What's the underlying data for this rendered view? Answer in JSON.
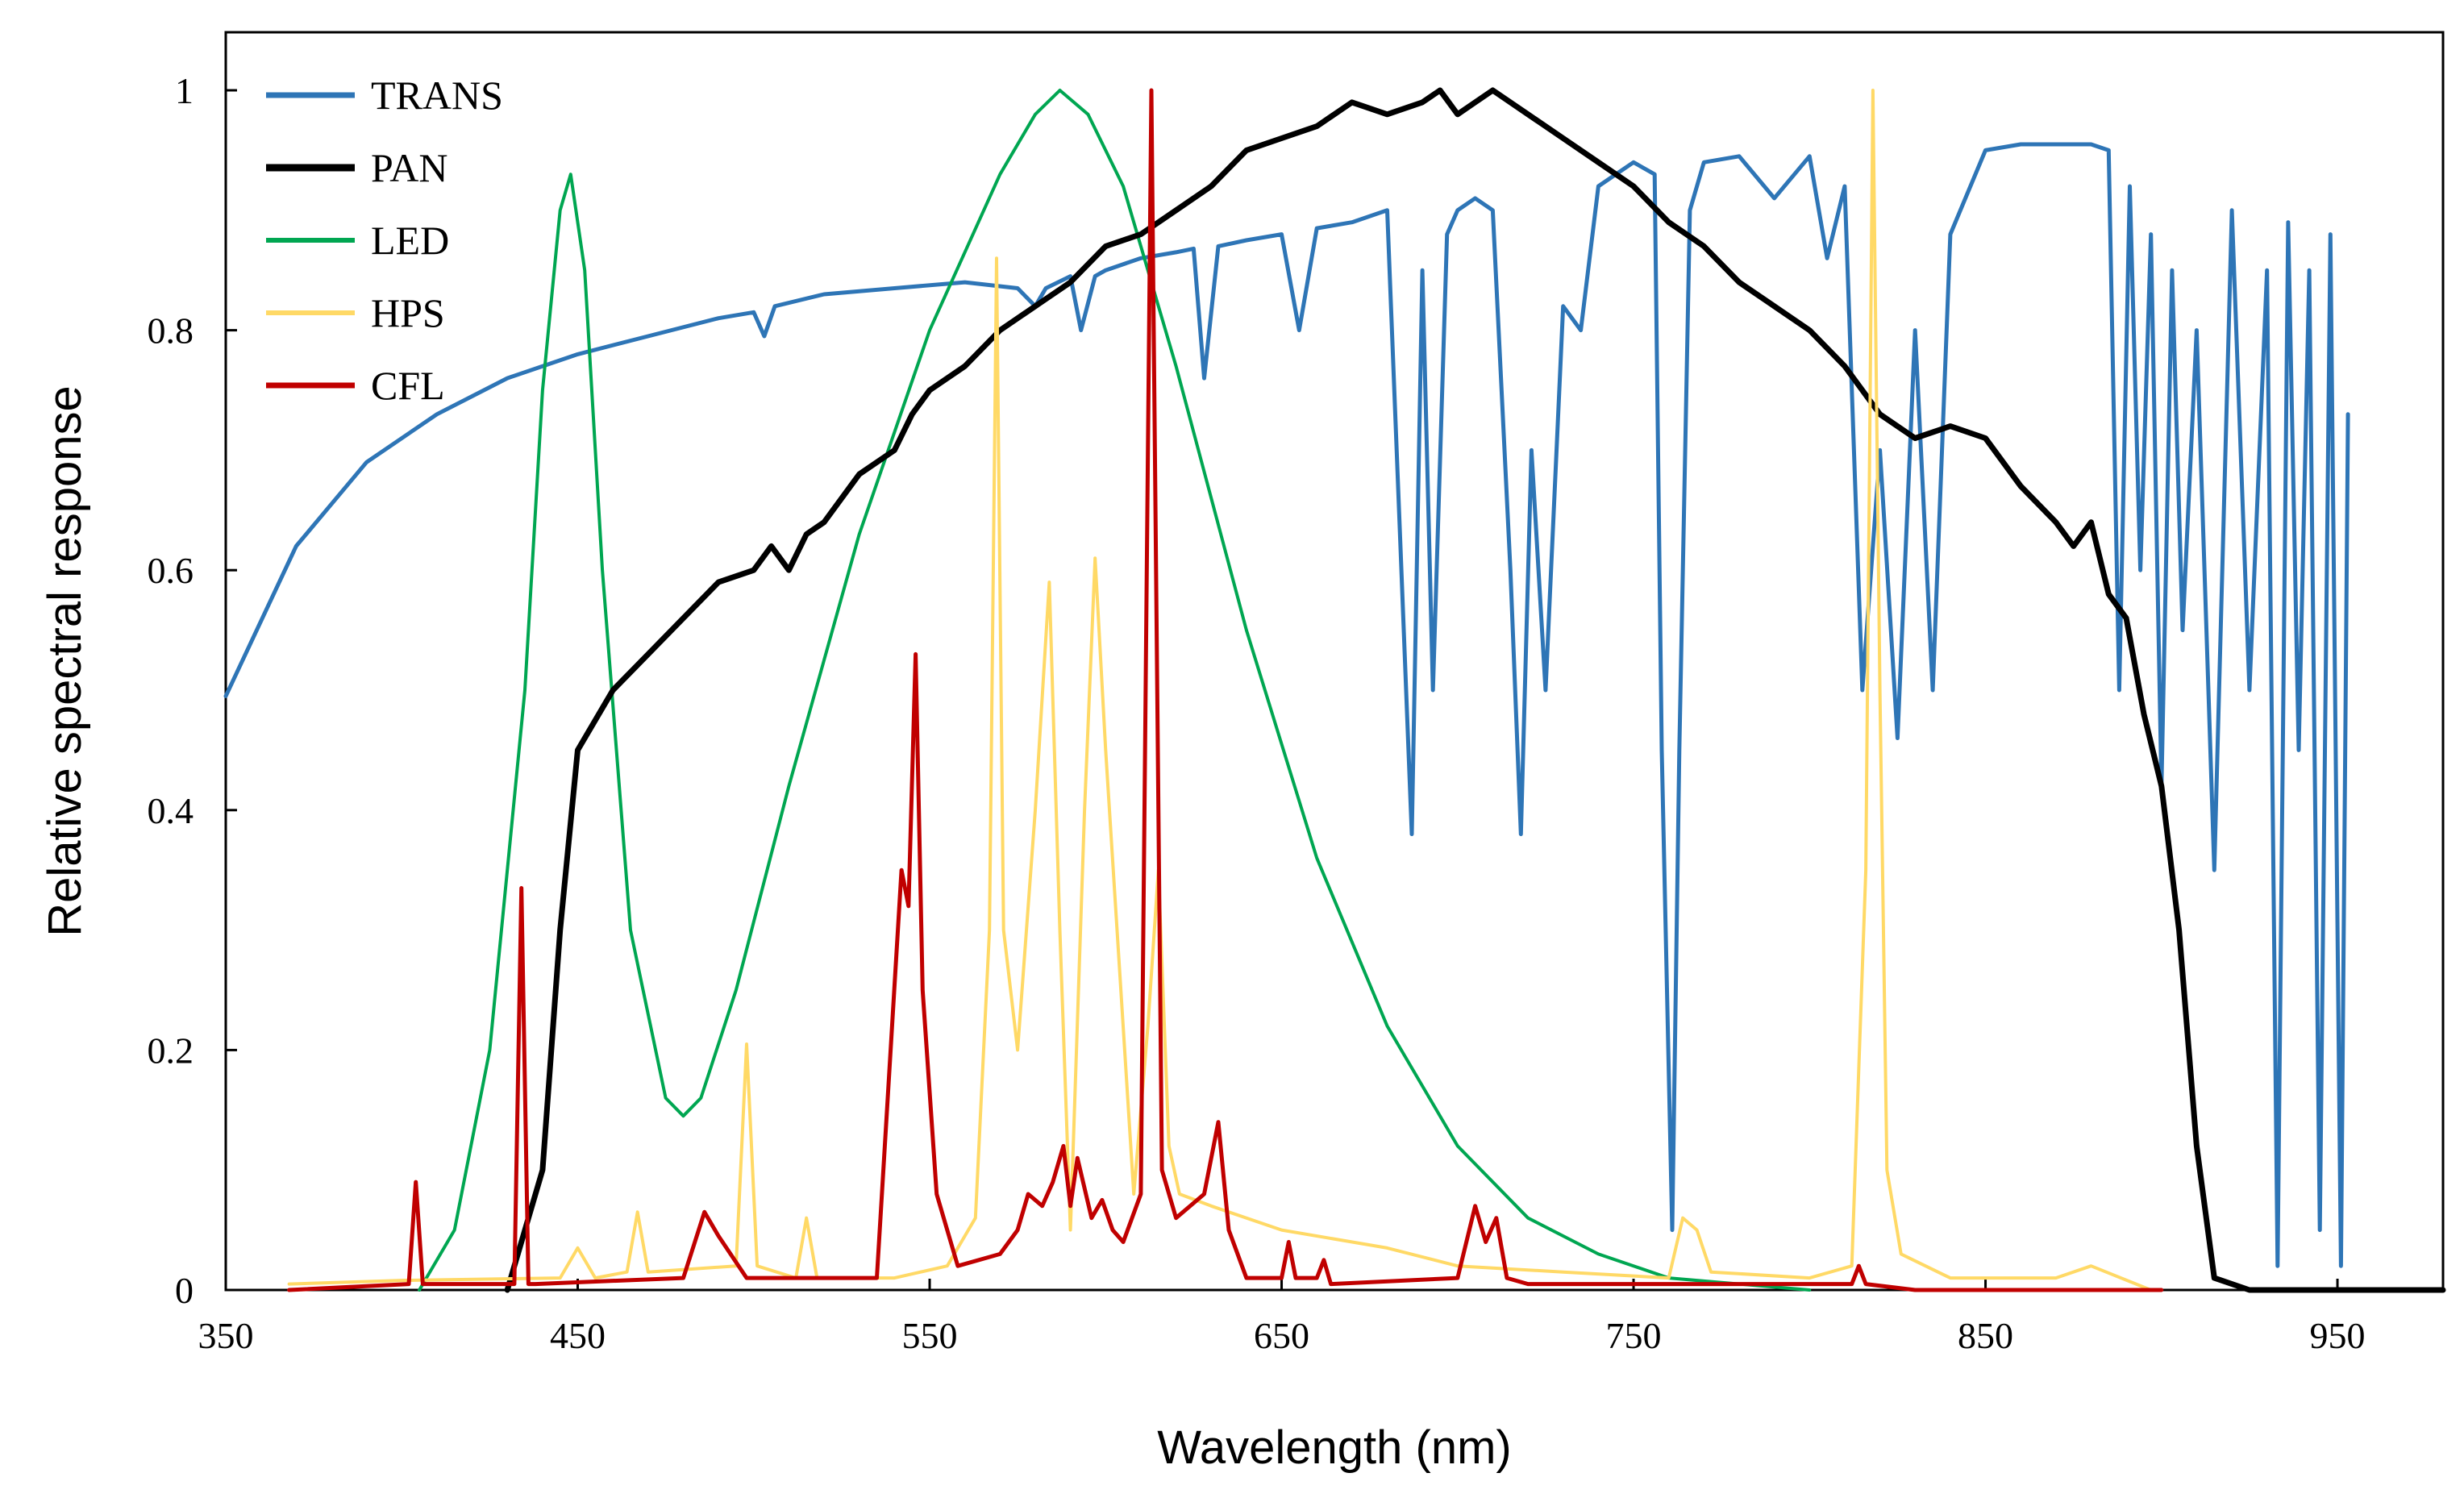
{
  "chart_data": {
    "type": "line",
    "title": "",
    "xlabel": "Wavelength (nm)",
    "ylabel": "Relative spectral response",
    "xlim": [
      350,
      980
    ],
    "ylim": [
      0,
      1.0
    ],
    "x_ticks": [
      350,
      450,
      550,
      650,
      750,
      850,
      950
    ],
    "y_ticks": [
      {
        "value": 0,
        "label": "0"
      },
      {
        "value": 0.2,
        "label": "0.2"
      },
      {
        "value": 0.4,
        "label": "0.4"
      },
      {
        "value": 0.6,
        "label": "0.6"
      },
      {
        "value": 0.8,
        "label": "0.8"
      },
      {
        "value": 1.0,
        "label": "1"
      }
    ],
    "grid": false,
    "legend_position": "top-left",
    "series": [
      {
        "name": "TRANS",
        "color": "#2E75B6",
        "width": 5,
        "x": [
          350,
          370,
          390,
          410,
          430,
          450,
          470,
          490,
          500,
          503,
          506,
          520,
          540,
          560,
          575,
          580,
          583,
          590,
          593,
          597,
          600,
          610,
          620,
          625,
          628,
          632,
          640,
          650,
          655,
          660,
          670,
          680,
          687,
          690,
          693,
          697,
          700,
          705,
          710,
          715,
          718,
          721,
          725,
          730,
          735,
          740,
          750,
          756,
          758,
          761,
          763,
          766,
          770,
          780,
          790,
          800,
          805,
          810,
          815,
          820,
          825,
          830,
          835,
          840,
          850,
          860,
          870,
          880,
          885,
          888,
          891,
          894,
          897,
          900,
          903,
          906,
          910,
          915,
          920,
          925,
          930,
          933,
          936,
          939,
          942,
          945,
          948,
          951,
          953
        ],
        "y": [
          0.495,
          0.62,
          0.69,
          0.73,
          0.76,
          0.78,
          0.795,
          0.81,
          0.815,
          0.795,
          0.82,
          0.83,
          0.835,
          0.84,
          0.835,
          0.82,
          0.835,
          0.845,
          0.8,
          0.845,
          0.85,
          0.86,
          0.865,
          0.868,
          0.76,
          0.87,
          0.875,
          0.88,
          0.8,
          0.885,
          0.89,
          0.9,
          0.38,
          0.85,
          0.5,
          0.88,
          0.9,
          0.91,
          0.9,
          0.6,
          0.38,
          0.7,
          0.5,
          0.82,
          0.8,
          0.92,
          0.94,
          0.93,
          0.45,
          0.05,
          0.45,
          0.9,
          0.94,
          0.945,
          0.91,
          0.945,
          0.86,
          0.92,
          0.5,
          0.7,
          0.46,
          0.8,
          0.5,
          0.88,
          0.95,
          0.955,
          0.955,
          0.955,
          0.95,
          0.5,
          0.92,
          0.6,
          0.88,
          0.42,
          0.85,
          0.55,
          0.8,
          0.35,
          0.9,
          0.5,
          0.85,
          0.02,
          0.89,
          0.45,
          0.85,
          0.05,
          0.88,
          0.02,
          0.73
        ]
      },
      {
        "name": "PAN",
        "color": "#000000",
        "width": 7,
        "x": [
          430,
          440,
          445,
          450,
          460,
          470,
          480,
          490,
          500,
          505,
          510,
          515,
          520,
          525,
          530,
          540,
          545,
          550,
          560,
          570,
          580,
          590,
          600,
          610,
          620,
          630,
          640,
          650,
          660,
          670,
          680,
          690,
          695,
          700,
          705,
          710,
          720,
          730,
          740,
          750,
          760,
          770,
          780,
          790,
          800,
          810,
          820,
          830,
          840,
          850,
          860,
          870,
          875,
          880,
          885,
          890,
          895,
          900,
          905,
          910,
          915,
          925,
          980
        ],
        "y": [
          0,
          0.1,
          0.3,
          0.45,
          0.5,
          0.53,
          0.56,
          0.59,
          0.6,
          0.62,
          0.6,
          0.63,
          0.64,
          0.66,
          0.68,
          0.7,
          0.73,
          0.75,
          0.77,
          0.8,
          0.82,
          0.84,
          0.87,
          0.88,
          0.9,
          0.92,
          0.95,
          0.96,
          0.97,
          0.99,
          0.98,
          0.99,
          1.0,
          0.98,
          0.99,
          1.0,
          0.98,
          0.96,
          0.94,
          0.92,
          0.89,
          0.87,
          0.84,
          0.82,
          0.8,
          0.77,
          0.73,
          0.71,
          0.72,
          0.71,
          0.67,
          0.64,
          0.62,
          0.64,
          0.58,
          0.56,
          0.48,
          0.42,
          0.3,
          0.12,
          0.01,
          0,
          0
        ]
      },
      {
        "name": "LED",
        "color": "#00A651",
        "width": 4,
        "x": [
          405,
          415,
          425,
          435,
          440,
          445,
          448,
          452,
          457,
          465,
          475,
          480,
          485,
          495,
          510,
          530,
          550,
          570,
          580,
          587,
          595,
          605,
          620,
          640,
          660,
          680,
          700,
          720,
          740,
          760,
          780,
          800
        ],
        "y": [
          0,
          0.05,
          0.2,
          0.5,
          0.75,
          0.9,
          0.93,
          0.85,
          0.6,
          0.3,
          0.16,
          0.145,
          0.16,
          0.25,
          0.42,
          0.63,
          0.8,
          0.93,
          0.98,
          1.0,
          0.98,
          0.92,
          0.77,
          0.55,
          0.36,
          0.22,
          0.12,
          0.06,
          0.03,
          0.01,
          0.005,
          0
        ]
      },
      {
        "name": "HPS",
        "color": "#FFD966",
        "width": 4,
        "x": [
          368,
          400,
          445,
          450,
          455,
          464,
          467,
          470,
          495,
          498,
          501,
          512,
          515,
          518,
          540,
          555,
          563,
          567,
          569,
          571,
          575,
          580,
          584,
          587,
          590,
          594,
          597,
          600,
          608,
          612,
          615,
          618,
          621,
          630,
          650,
          680,
          700,
          730,
          760,
          764,
          768,
          772,
          800,
          812,
          816,
          818,
          820,
          822,
          826,
          840,
          870,
          880,
          897
        ],
        "y": [
          0.005,
          0.008,
          0.01,
          0.035,
          0.01,
          0.015,
          0.065,
          0.015,
          0.02,
          0.205,
          0.02,
          0.01,
          0.06,
          0.01,
          0.01,
          0.02,
          0.06,
          0.3,
          0.86,
          0.3,
          0.2,
          0.4,
          0.59,
          0.3,
          0.05,
          0.4,
          0.61,
          0.45,
          0.08,
          0.22,
          0.35,
          0.12,
          0.08,
          0.07,
          0.05,
          0.035,
          0.02,
          0.015,
          0.01,
          0.06,
          0.05,
          0.015,
          0.01,
          0.02,
          0.35,
          1.0,
          0.5,
          0.1,
          0.03,
          0.01,
          0.01,
          0.02,
          0
        ]
      },
      {
        "name": "CFL",
        "color": "#C00000",
        "width": 5,
        "x": [
          368,
          402,
          404,
          406,
          408,
          432,
          434,
          436,
          438,
          480,
          486,
          490,
          498,
          535,
          542,
          544,
          546,
          548,
          552,
          558,
          570,
          575,
          578,
          582,
          585,
          588,
          590,
          592,
          596,
          599,
          602,
          605,
          610,
          613,
          616,
          620,
          628,
          632,
          635,
          640,
          650,
          652,
          654,
          660,
          662,
          664,
          700,
          705,
          708,
          711,
          714,
          720,
          760,
          812,
          814,
          816,
          830,
          900
        ],
        "y": [
          0,
          0.005,
          0.09,
          0.005,
          0.005,
          0.005,
          0.335,
          0.005,
          0.005,
          0.01,
          0.065,
          0.045,
          0.01,
          0.01,
          0.35,
          0.32,
          0.53,
          0.25,
          0.08,
          0.02,
          0.03,
          0.05,
          0.08,
          0.07,
          0.09,
          0.12,
          0.07,
          0.11,
          0.06,
          0.075,
          0.05,
          0.04,
          0.08,
          1.0,
          0.1,
          0.06,
          0.08,
          0.14,
          0.05,
          0.01,
          0.01,
          0.04,
          0.01,
          0.01,
          0.025,
          0.005,
          0.01,
          0.07,
          0.04,
          0.06,
          0.01,
          0.005,
          0.005,
          0.005,
          0.02,
          0.005,
          0,
          0
        ]
      }
    ]
  }
}
